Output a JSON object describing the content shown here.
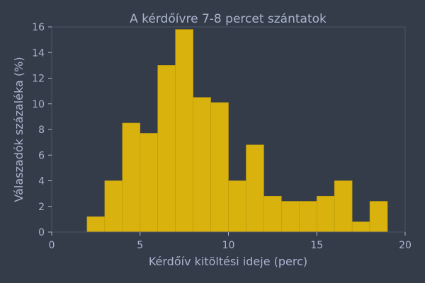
{
  "chart_data": {
    "type": "bar",
    "title": "A kérdőívre 7-8 percet szántatok",
    "xlabel": "Kérdőív kitöltési ideje (perc)",
    "ylabel": "Válaszadók százaléka (%)",
    "xlim": [
      0,
      20
    ],
    "ylim": [
      0,
      16
    ],
    "xticks": [
      0,
      5,
      10,
      15,
      20
    ],
    "yticks": [
      0,
      2,
      4,
      6,
      8,
      10,
      12,
      14,
      16
    ],
    "bin_width": 1,
    "bins": [
      {
        "x_start": 2,
        "x_end": 3,
        "value": 1.2
      },
      {
        "x_start": 3,
        "x_end": 4,
        "value": 4.0
      },
      {
        "x_start": 4,
        "x_end": 5,
        "value": 8.5
      },
      {
        "x_start": 5,
        "x_end": 6,
        "value": 7.7
      },
      {
        "x_start": 6,
        "x_end": 7,
        "value": 13.0
      },
      {
        "x_start": 7,
        "x_end": 8,
        "value": 15.8
      },
      {
        "x_start": 8,
        "x_end": 9,
        "value": 10.5
      },
      {
        "x_start": 9,
        "x_end": 10,
        "value": 10.1
      },
      {
        "x_start": 10,
        "x_end": 11,
        "value": 4.0
      },
      {
        "x_start": 11,
        "x_end": 12,
        "value": 6.8
      },
      {
        "x_start": 12,
        "x_end": 13,
        "value": 2.8
      },
      {
        "x_start": 13,
        "x_end": 14,
        "value": 2.4
      },
      {
        "x_start": 14,
        "x_end": 15,
        "value": 2.4
      },
      {
        "x_start": 15,
        "x_end": 16,
        "value": 2.8
      },
      {
        "x_start": 16,
        "x_end": 17,
        "value": 4.0
      },
      {
        "x_start": 17,
        "x_end": 18,
        "value": 0.8
      },
      {
        "x_start": 18,
        "x_end": 19,
        "value": 2.4
      }
    ],
    "grid": false,
    "bar_color": "#d9b20d",
    "text_color": "#aab4cc",
    "background_color": "#343c4a"
  }
}
